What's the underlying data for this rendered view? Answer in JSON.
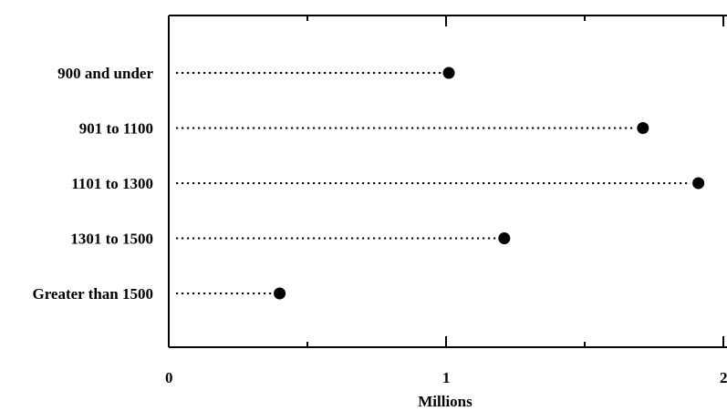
{
  "chart_data": {
    "type": "dot",
    "categories": [
      "900 and under",
      "901 to 1100",
      "1101 to 1300",
      "1301 to 1500",
      "Greater than 1500"
    ],
    "values": [
      1.01,
      1.71,
      1.91,
      1.21,
      0.4
    ],
    "xlabel": "Millions",
    "ylabel": "",
    "title": "",
    "xlim": [
      0,
      2
    ],
    "xticks": [
      "0",
      "1",
      "2"
    ],
    "grid": false,
    "legend": "none",
    "colors": {
      "marker": "#000000",
      "leader": "#000000",
      "frame": "#000000"
    }
  }
}
